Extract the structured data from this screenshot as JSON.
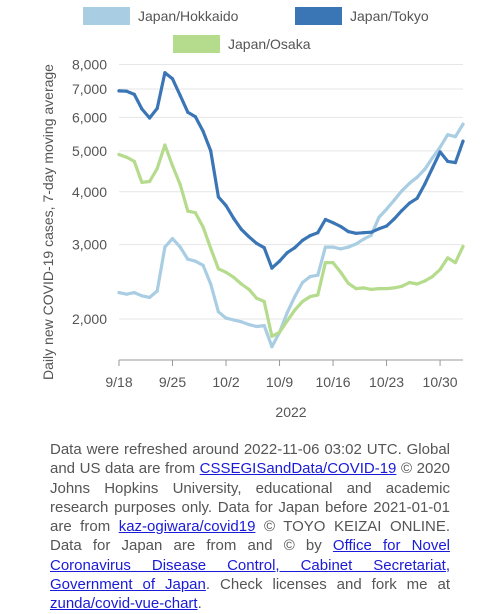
{
  "chart_data": {
    "type": "line",
    "ylabel": "Daily new COVID-19 cases, 7-day moving average",
    "xlabel": "2022",
    "yscale": "log",
    "ylim": [
      1600,
      8200
    ],
    "y_ticks": [
      2000,
      3000,
      4000,
      5000,
      6000,
      7000,
      8000
    ],
    "y_tick_labels": [
      "2,000",
      "3,000",
      "4,000",
      "5,000",
      "6,000",
      "7,000",
      "8,000"
    ],
    "x_tick_labels": [
      "9/18",
      "9/25",
      "10/2",
      "10/9",
      "10/16",
      "10/23",
      "10/30"
    ],
    "x_tick_day_offsets": [
      0,
      7,
      14,
      21,
      28,
      35,
      42
    ],
    "legend_position": "top",
    "series": [
      {
        "name": "Japan/Hokkaido",
        "color": "#a9cde3",
        "values": [
          2310,
          2290,
          2310,
          2270,
          2250,
          2330,
          2960,
          3100,
          2960,
          2770,
          2740,
          2680,
          2420,
          2080,
          2010,
          1990,
          1970,
          1940,
          1920,
          1930,
          1720,
          1860,
          2070,
          2260,
          2440,
          2520,
          2540,
          2960,
          2960,
          2930,
          2960,
          3010,
          3090,
          3160,
          3480,
          3640,
          3820,
          4020,
          4190,
          4330,
          4520,
          4810,
          5100,
          5460,
          5400,
          5780
        ]
      },
      {
        "name": "Japan/Tokyo",
        "color": "#3a75b5",
        "values": [
          6930,
          6920,
          6800,
          6280,
          5980,
          6300,
          7650,
          7400,
          6760,
          6170,
          6020,
          5560,
          5000,
          3890,
          3710,
          3460,
          3260,
          3130,
          3020,
          2950,
          2640,
          2740,
          2870,
          2950,
          3070,
          3150,
          3200,
          3440,
          3380,
          3310,
          3220,
          3190,
          3200,
          3210,
          3270,
          3320,
          3450,
          3610,
          3760,
          3860,
          4170,
          4550,
          4970,
          4720,
          4690,
          5270
        ]
      },
      {
        "name": "Japan/Osaka",
        "color": "#b5db8c",
        "values": [
          4900,
          4830,
          4720,
          4210,
          4230,
          4540,
          5160,
          4610,
          4160,
          3600,
          3570,
          3300,
          2940,
          2630,
          2580,
          2510,
          2420,
          2350,
          2240,
          2200,
          1820,
          1860,
          1980,
          2100,
          2200,
          2260,
          2280,
          2720,
          2720,
          2580,
          2430,
          2360,
          2370,
          2350,
          2360,
          2360,
          2370,
          2390,
          2440,
          2420,
          2460,
          2520,
          2620,
          2790,
          2720,
          2970
        ]
      }
    ]
  },
  "footer": {
    "t1": "Data were refreshed around 2022-11-06 03:02 UTC. Global and US data are from ",
    "l1": "CSSEGISandData/COVID-19",
    "t2": " © 2020 Johns Hopkins University, educational and academic research purposes only. Data for Japan before 2021-01-01 are from ",
    "l2": "kaz-ogiwara/covid19",
    "t3": " © TOYO KEIZAI ONLINE. Data for Japan are from and © by ",
    "l3": "Office for Novel Coronavirus Disease Control, Cabinet Secretariat, Government of Japan",
    "t4": ". Check licenses and fork me at ",
    "l4": "zunda/covid-vue-chart",
    "t5": "."
  }
}
